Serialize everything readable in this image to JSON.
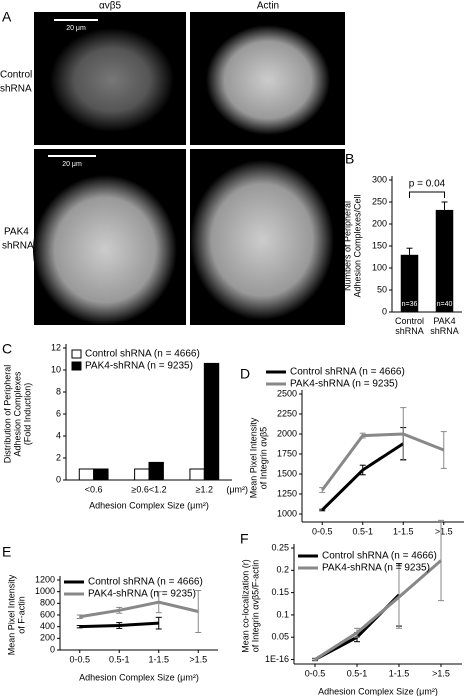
{
  "panel_a": {
    "panel": "A",
    "columns": [
      "αvβ5",
      "Actin"
    ],
    "row_labels": [
      [
        "Control",
        "shRNA"
      ],
      [
        "PAK4",
        "shRNA"
      ]
    ],
    "scale_labels": [
      "20 μm",
      "20 μm"
    ]
  },
  "chart_data": [
    {
      "type": "bar",
      "panel": "B",
      "ylabel": [
        "Numbers of Peripheral",
        "Adhesion Complexes/Cell"
      ],
      "categories": [
        "Control shRNA",
        "PAK4 shRNA"
      ],
      "values": [
        130,
        232
      ],
      "errors": [
        15,
        18
      ],
      "color": "#000000",
      "annotations": [
        "n=36",
        "n=40"
      ],
      "comparison": "p = 0.04",
      "ylim": [
        0,
        300
      ],
      "yticks": [
        0,
        50,
        100,
        150,
        200,
        250,
        300
      ]
    },
    {
      "type": "bar",
      "panel": "C",
      "ylabel": [
        "Distribution of Peripheral",
        "Adhesion Complexes",
        "(Fold Induction)"
      ],
      "xlabel": "Adhesion Complex Size (μm²)",
      "categories": [
        "<0.6",
        "≥0.6<1.2",
        "≥1.2"
      ],
      "unit": "(μm²)",
      "series": [
        {
          "name": "Control shRNA (n = 4666)",
          "color": "#ffffff",
          "values": [
            1,
            1,
            1
          ]
        },
        {
          "name": "PAK4-shRNA (n = 9235)",
          "color": "#000000",
          "values": [
            1,
            1.6,
            10.6
          ]
        }
      ],
      "ylim": [
        0,
        12
      ],
      "yticks": [
        0,
        2,
        4,
        6,
        8,
        10,
        12
      ]
    },
    {
      "type": "line",
      "panel": "D",
      "ylabel": [
        "Mean Pixel Intensity",
        "of Integrin αvβ5"
      ],
      "categories": [
        "0-0.5",
        "0.5-1",
        "1-1.5",
        ">1.5"
      ],
      "series": [
        {
          "name": "Control shRNA (n = 4666)",
          "color": "#000000",
          "values": [
            1050,
            1550,
            1880,
            null
          ],
          "errors": [
            10,
            60,
            200,
            null
          ]
        },
        {
          "name": "PAK4-shRNA (n = 9235)",
          "color": "#888888",
          "values": [
            1300,
            1980,
            2000,
            1800
          ],
          "errors": [
            30,
            30,
            330,
            230
          ]
        }
      ],
      "ylim": [
        900,
        2500
      ],
      "yticks": [
        1000,
        1250,
        1500,
        1750,
        2000,
        2250,
        2500
      ]
    },
    {
      "type": "line",
      "panel": "E",
      "ylabel": [
        "Mean Pixel Intensity",
        "of F-actin"
      ],
      "xlabel": "Adhesion Complex Size (μm²)",
      "categories": [
        "0-0.5",
        "0.5-1",
        "1-1.5",
        ">1.5"
      ],
      "series": [
        {
          "name": "Control shRNA (n = 4666)",
          "color": "#000000",
          "values": [
            400,
            420,
            460,
            null
          ],
          "errors": [
            20,
            50,
            100,
            null
          ]
        },
        {
          "name": "PAK4-shRNA (n = 9235)",
          "color": "#888888",
          "values": [
            570,
            680,
            820,
            660
          ],
          "errors": [
            30,
            50,
            180,
            360
          ]
        }
      ],
      "ylim": [
        0,
        1200
      ],
      "yticks": [
        0,
        200,
        400,
        600,
        800,
        1000,
        1200
      ]
    },
    {
      "type": "line",
      "panel": "F",
      "ylabel": [
        "Mean co-localization (r)",
        "of Integrin αvβ5/F-actin"
      ],
      "xlabel": "Adhesion Complex Size (μm²)",
      "categories": [
        "0-0.5",
        "0.5-1",
        "1-1.5",
        ">1.5"
      ],
      "series": [
        {
          "name": "Control shRNA (n = 4666)",
          "color": "#000000",
          "values": [
            0,
            0.05,
            0.145,
            null
          ],
          "errors": [
            0.002,
            0.01,
            0.07,
            null
          ]
        },
        {
          "name": "PAK4-shRNA (n = 9235)",
          "color": "#888888",
          "values": [
            0,
            0.06,
            0.14,
            0.222
          ],
          "errors": [
            0.003,
            0.01,
            0.07,
            0.09
          ]
        }
      ],
      "ylim": [
        -0.01,
        0.25
      ],
      "yticks": [
        {
          "value": 1e-16,
          "label": "1E-16"
        },
        0.05,
        0.1,
        0.15,
        0.2,
        0.25
      ]
    }
  ]
}
